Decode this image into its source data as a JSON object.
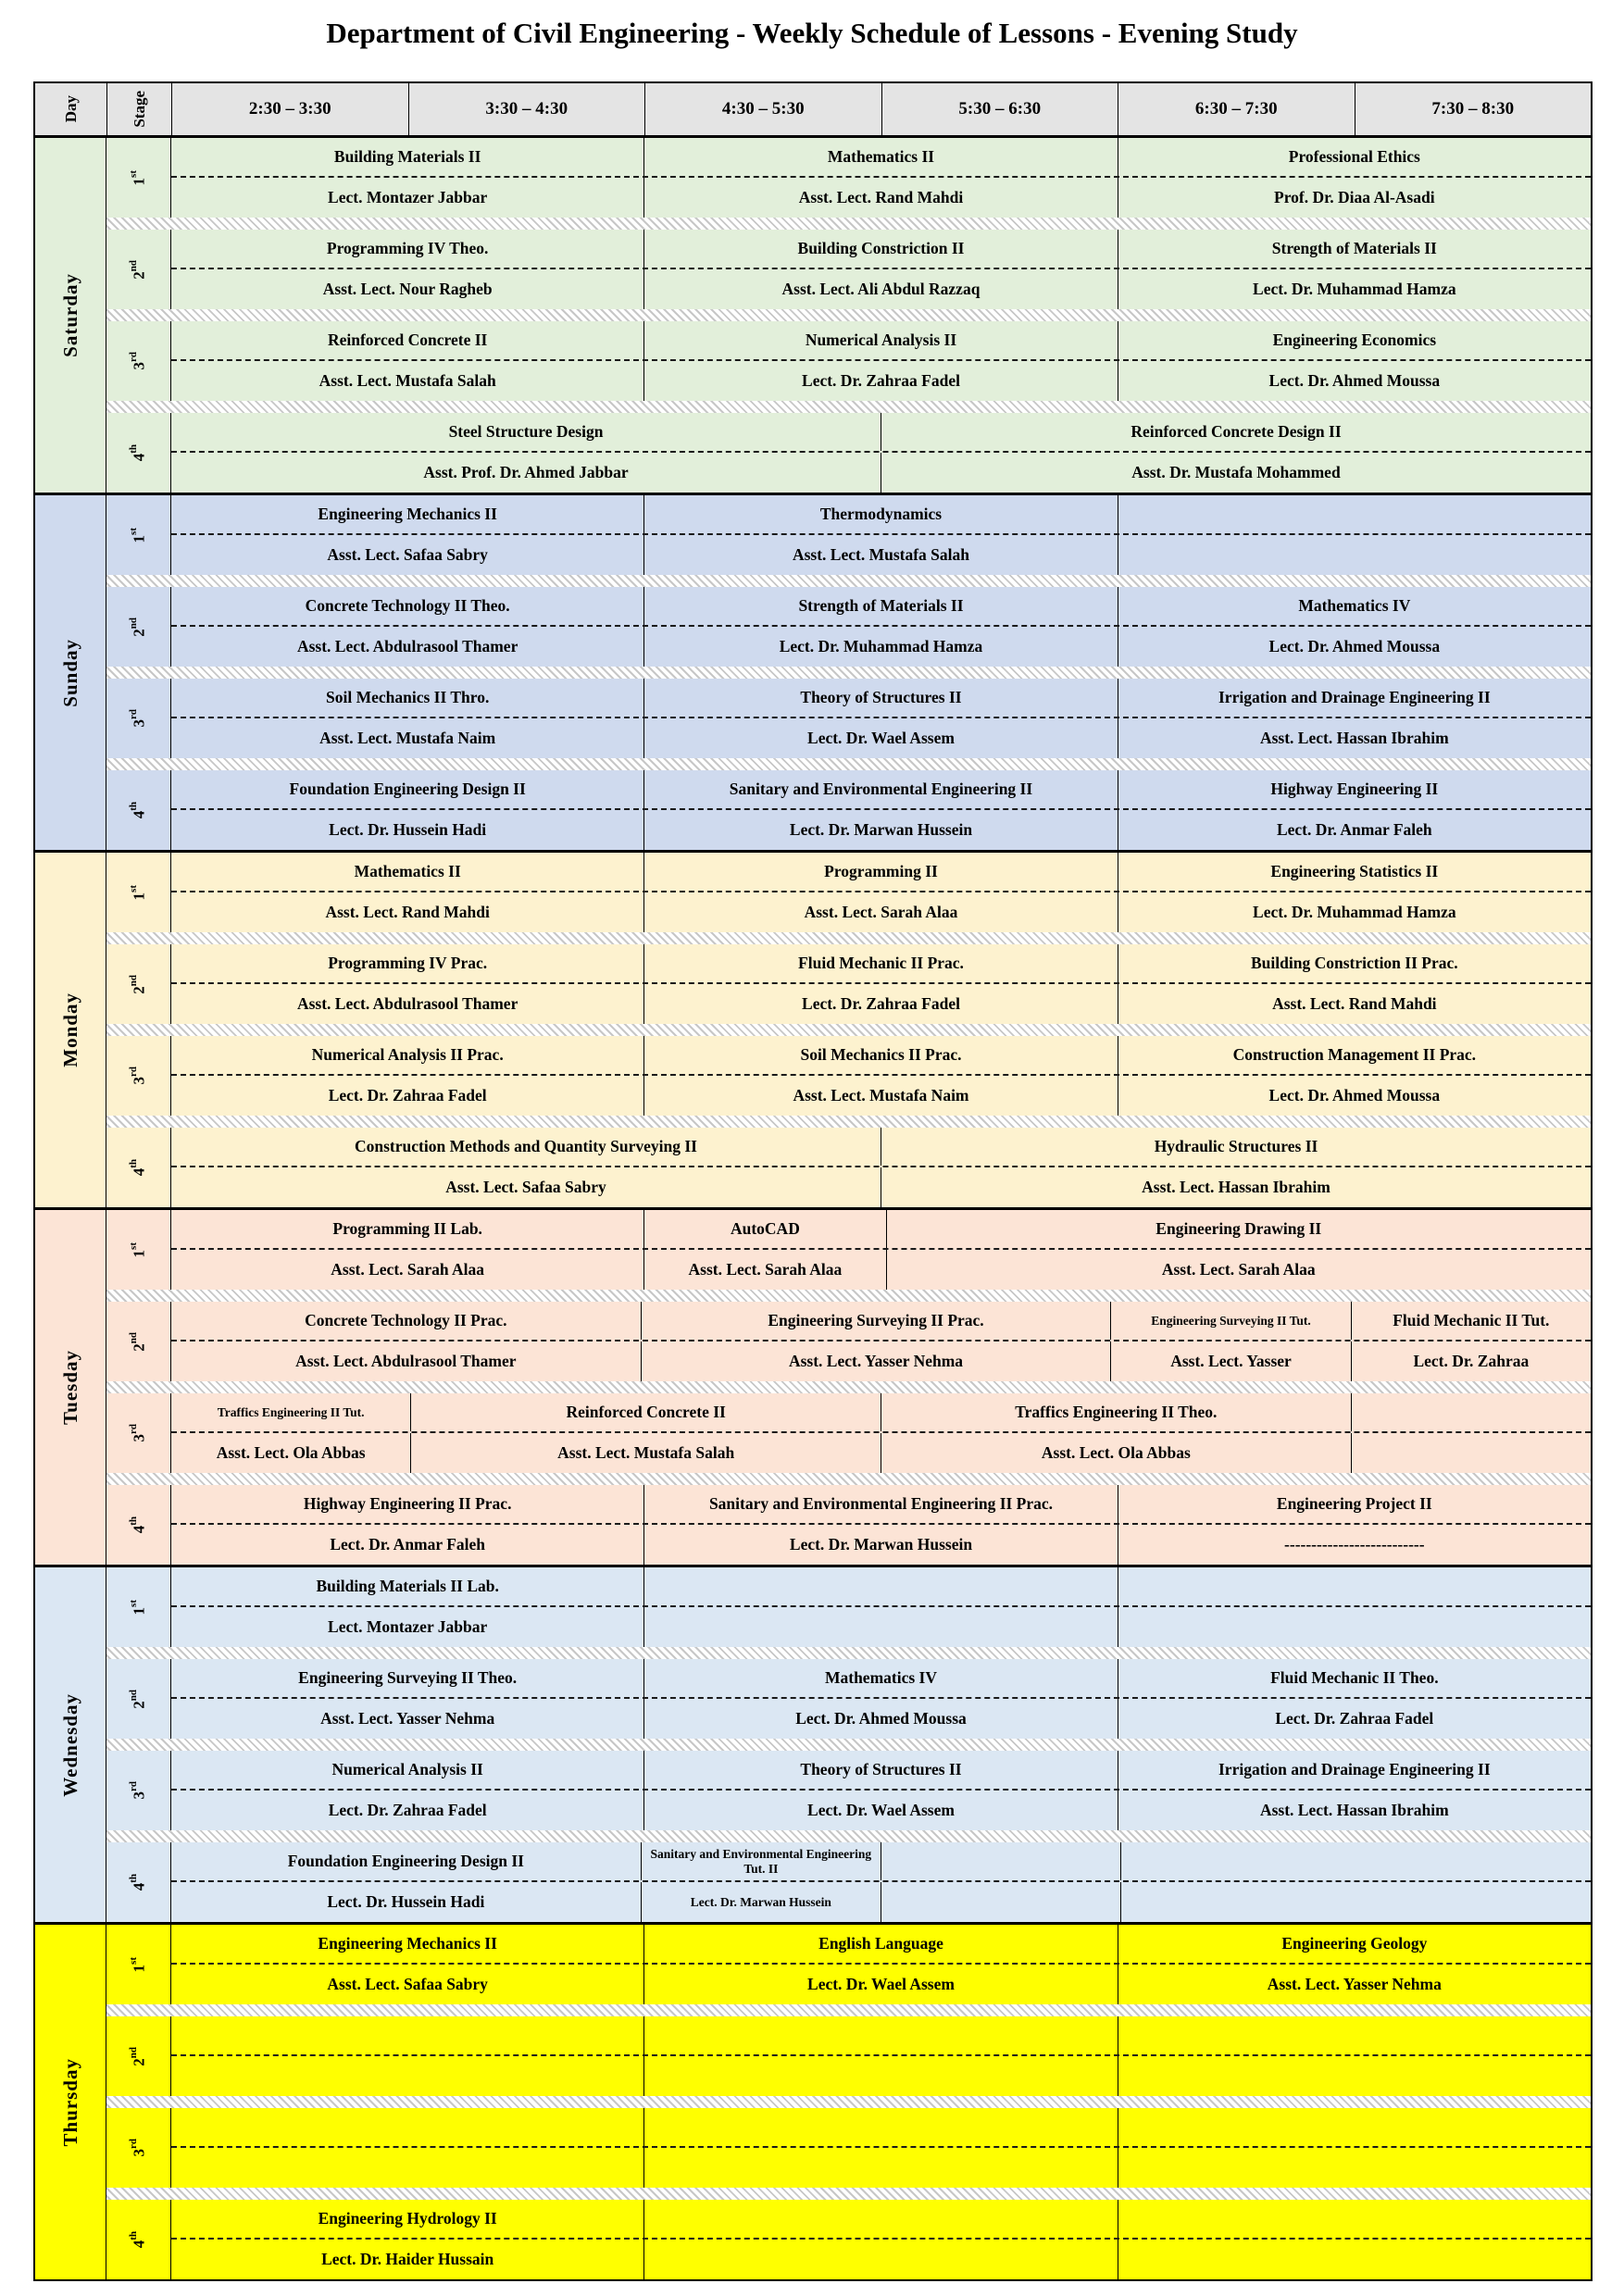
{
  "title": "Department of Civil Engineering - Weekly Schedule of Lessons - Evening Study",
  "header": {
    "day": "Day",
    "stage": "Stage",
    "times": [
      "2:30 – 3:30",
      "3:30 – 4:30",
      "4:30 – 5:30",
      "5:30 – 6:30",
      "6:30 – 7:30",
      "7:30 – 8:30"
    ]
  },
  "stages": [
    {
      "num": "1",
      "suffix": "st"
    },
    {
      "num": "2",
      "suffix": "nd"
    },
    {
      "num": "3",
      "suffix": "rd"
    },
    {
      "num": "4",
      "suffix": "th"
    }
  ],
  "colors": {
    "header_bg": "#e4e4e4",
    "saturday": "#e2efda",
    "sunday": "#cfdaee",
    "monday": "#fdf2cf",
    "tuesday": "#fce4d6",
    "wednesday": "#dbe7f3",
    "thursday": "#ffff00"
  },
  "days": [
    {
      "name": "Saturday",
      "color": "#e2efda",
      "stages": [
        {
          "cells": [
            {
              "span": 2,
              "subject": "Building Materials II",
              "lecturer": "Lect. Montazer Jabbar"
            },
            {
              "span": 2,
              "subject": "Mathematics II",
              "lecturer": "Asst. Lect. Rand Mahdi"
            },
            {
              "span": 2,
              "subject": "Professional Ethics",
              "lecturer": "Prof. Dr. Diaa Al-Asadi"
            }
          ]
        },
        {
          "cells": [
            {
              "span": 2,
              "subject": "Programming IV Theo.",
              "lecturer": "Asst. Lect. Nour Ragheb"
            },
            {
              "span": 2,
              "subject": "Building Constriction II",
              "lecturer": "Asst. Lect. Ali Abdul Razzaq"
            },
            {
              "span": 2,
              "subject": "Strength of Materials II",
              "lecturer": "Lect. Dr. Muhammad Hamza"
            }
          ]
        },
        {
          "cells": [
            {
              "span": 2,
              "subject": "Reinforced Concrete II",
              "lecturer": "Asst. Lect. Mustafa Salah"
            },
            {
              "span": 2,
              "subject": "Numerical Analysis II",
              "lecturer": "Lect. Dr. Zahraa Fadel"
            },
            {
              "span": 2,
              "subject": "Engineering Economics",
              "lecturer": "Lect. Dr. Ahmed Moussa"
            }
          ]
        },
        {
          "cells": [
            {
              "span": 3,
              "subject": "Steel Structure Design",
              "lecturer": "Asst. Prof. Dr. Ahmed Jabbar"
            },
            {
              "span": 3,
              "subject": "Reinforced Concrete Design II",
              "lecturer": "Asst. Dr. Mustafa Mohammed"
            }
          ]
        }
      ]
    },
    {
      "name": "Sunday",
      "color": "#cfdaee",
      "stages": [
        {
          "cells": [
            {
              "span": 2,
              "subject": "Engineering Mechanics II",
              "lecturer": "Asst. Lect. Safaa Sabry"
            },
            {
              "span": 2,
              "subject": "Thermodynamics",
              "lecturer": "Asst. Lect. Mustafa Salah"
            },
            {
              "span": 2,
              "subject": "",
              "lecturer": ""
            }
          ]
        },
        {
          "cells": [
            {
              "span": 2,
              "subject": "Concrete Technology II Theo.",
              "lecturer": "Asst. Lect. Abdulrasool Thamer"
            },
            {
              "span": 2,
              "subject": "Strength of Materials II",
              "lecturer": "Lect. Dr. Muhammad Hamza"
            },
            {
              "span": 2,
              "subject": "Mathematics IV",
              "lecturer": "Lect. Dr. Ahmed Moussa"
            }
          ]
        },
        {
          "cells": [
            {
              "span": 2,
              "subject": "Soil Mechanics II Thro.",
              "lecturer": "Asst. Lect. Mustafa Naim"
            },
            {
              "span": 2,
              "subject": "Theory of Structures II",
              "lecturer": "Lect. Dr. Wael Assem"
            },
            {
              "span": 2,
              "subject": "Irrigation and Drainage Engineering II",
              "lecturer": "Asst. Lect. Hassan Ibrahim"
            }
          ]
        },
        {
          "cells": [
            {
              "span": 2,
              "subject": "Foundation Engineering Design II",
              "lecturer": "Lect. Dr. Hussein Hadi"
            },
            {
              "span": 2,
              "subject": "Sanitary and Environmental Engineering II",
              "lecturer": "Lect. Dr. Marwan Hussein"
            },
            {
              "span": 2,
              "subject": "Highway Engineering II",
              "lecturer": "Lect. Dr. Anmar Faleh"
            }
          ]
        }
      ]
    },
    {
      "name": "Monday",
      "color": "#fdf2cf",
      "stages": [
        {
          "cells": [
            {
              "span": 2,
              "subject": "Mathematics II",
              "lecturer": "Asst. Lect. Rand Mahdi"
            },
            {
              "span": 2,
              "subject": "Programming II",
              "lecturer": "Asst. Lect. Sarah Alaa"
            },
            {
              "span": 2,
              "subject": "Engineering Statistics II",
              "lecturer": "Lect. Dr. Muhammad Hamza"
            }
          ]
        },
        {
          "cells": [
            {
              "span": 2,
              "subject": "Programming IV Prac.",
              "lecturer": "Asst. Lect. Abdulrasool Thamer"
            },
            {
              "span": 2,
              "subject": "Fluid Mechanic II Prac.",
              "lecturer": "Lect. Dr. Zahraa Fadel"
            },
            {
              "span": 2,
              "subject": "Building Constriction II Prac.",
              "lecturer": "Asst. Lect. Rand Mahdi"
            }
          ]
        },
        {
          "cells": [
            {
              "span": 2,
              "subject": "Numerical Analysis II Prac.",
              "lecturer": "Lect. Dr. Zahraa Fadel"
            },
            {
              "span": 2,
              "subject": "Soil Mechanics II Prac.",
              "lecturer": "Asst. Lect. Mustafa Naim"
            },
            {
              "span": 2,
              "subject": "Construction Management II Prac.",
              "lecturer": "Lect. Dr. Ahmed Moussa"
            }
          ]
        },
        {
          "cells": [
            {
              "span": 3,
              "subject": "Construction Methods and Quantity Surveying II",
              "lecturer": "Asst. Lect. Safaa Sabry"
            },
            {
              "span": 3,
              "subject": "Hydraulic Structures II",
              "lecturer": "Asst. Lect. Hassan Ibrahim"
            }
          ]
        }
      ]
    },
    {
      "name": "Tuesday",
      "color": "#fce4d6",
      "stages": [
        {
          "cells": [
            {
              "span": 2,
              "subject": "Programming II Lab.",
              "lecturer": "Asst. Lect. Sarah Alaa"
            },
            {
              "span": 1,
              "subject": "AutoCAD",
              "lecturer": "Asst. Lect. Sarah Alaa"
            },
            {
              "span": 3,
              "subject": "Engineering Drawing II",
              "lecturer": "Asst. Lect. Sarah Alaa"
            }
          ]
        },
        {
          "cells": [
            {
              "span": 2,
              "subject": "Concrete Technology II Prac.",
              "lecturer": "Asst. Lect. Abdulrasool Thamer"
            },
            {
              "span": 2,
              "subject": "Engineering Surveying II Prac.",
              "lecturer": "Asst. Lect. Yasser Nehma"
            },
            {
              "span": 1,
              "subject": "Engineering Surveying II Tut.",
              "lecturer": "Asst. Lect. Yasser",
              "subject_small": true
            },
            {
              "span": 1,
              "subject": "Fluid Mechanic II Tut.",
              "lecturer": "Lect. Dr. Zahraa"
            }
          ]
        },
        {
          "cells": [
            {
              "span": 1,
              "subject": "Traffics Engineering II Tut.",
              "lecturer": "Asst. Lect. Ola Abbas",
              "subject_small": true
            },
            {
              "span": 2,
              "subject": "Reinforced Concrete II",
              "lecturer": "Asst. Lect. Mustafa Salah"
            },
            {
              "span": 2,
              "subject": "Traffics Engineering II Theo.",
              "lecturer": "Asst. Lect. Ola Abbas"
            },
            {
              "span": 1,
              "subject": "",
              "lecturer": ""
            }
          ]
        },
        {
          "cells": [
            {
              "span": 2,
              "subject": "Highway Engineering II Prac.",
              "lecturer": "Lect. Dr. Anmar Faleh"
            },
            {
              "span": 2,
              "subject": "Sanitary and Environmental Engineering II Prac.",
              "lecturer": "Lect. Dr. Marwan Hussein"
            },
            {
              "span": 2,
              "subject": "Engineering Project II",
              "lecturer": "--------------------------"
            }
          ]
        }
      ]
    },
    {
      "name": "Wednesday",
      "color": "#dbe7f3",
      "stages": [
        {
          "cells": [
            {
              "span": 2,
              "subject": "Building Materials II Lab.",
              "lecturer": "Lect. Montazer Jabbar"
            },
            {
              "span": 2,
              "subject": "",
              "lecturer": ""
            },
            {
              "span": 2,
              "subject": "",
              "lecturer": ""
            }
          ]
        },
        {
          "cells": [
            {
              "span": 2,
              "subject": "Engineering Surveying II Theo.",
              "lecturer": "Asst. Lect. Yasser Nehma"
            },
            {
              "span": 2,
              "subject": "Mathematics IV",
              "lecturer": "Lect. Dr. Ahmed Moussa"
            },
            {
              "span": 2,
              "subject": "Fluid Mechanic II Theo.",
              "lecturer": "Lect. Dr. Zahraa Fadel"
            }
          ]
        },
        {
          "cells": [
            {
              "span": 2,
              "subject": "Numerical Analysis II",
              "lecturer": "Lect. Dr. Zahraa Fadel"
            },
            {
              "span": 2,
              "subject": "Theory of Structures II",
              "lecturer": "Lect. Dr. Wael Assem"
            },
            {
              "span": 2,
              "subject": "Irrigation and Drainage Engineering II",
              "lecturer": "Asst. Lect. Hassan Ibrahim"
            }
          ]
        },
        {
          "cells": [
            {
              "span": 2,
              "subject": "Foundation Engineering Design II",
              "lecturer": "Lect. Dr. Hussein Hadi"
            },
            {
              "span": 1,
              "subject": "Sanitary and Environmental Engineering Tut. II",
              "lecturer": "Lect. Dr. Marwan Hussein",
              "subject_small": true,
              "lecturer_small": true
            },
            {
              "span": 1,
              "subject": "",
              "lecturer": ""
            },
            {
              "span": 2,
              "subject": "",
              "lecturer": ""
            }
          ]
        }
      ]
    },
    {
      "name": "Thursday",
      "color": "#ffff00",
      "stages": [
        {
          "cells": [
            {
              "span": 2,
              "subject": "Engineering Mechanics II",
              "lecturer": "Asst. Lect. Safaa Sabry"
            },
            {
              "span": 2,
              "subject": "English Language",
              "lecturer": "Lect. Dr. Wael Assem"
            },
            {
              "span": 2,
              "subject": "Engineering Geology",
              "lecturer": "Asst. Lect. Yasser Nehma"
            }
          ]
        },
        {
          "cells": [
            {
              "span": 2,
              "subject": "",
              "lecturer": ""
            },
            {
              "span": 2,
              "subject": "",
              "lecturer": ""
            },
            {
              "span": 2,
              "subject": "",
              "lecturer": ""
            }
          ]
        },
        {
          "cells": [
            {
              "span": 2,
              "subject": "",
              "lecturer": ""
            },
            {
              "span": 2,
              "subject": "",
              "lecturer": ""
            },
            {
              "span": 2,
              "subject": "",
              "lecturer": ""
            }
          ]
        },
        {
          "cells": [
            {
              "span": 2,
              "subject": "Engineering Hydrology II",
              "lecturer": "Lect. Dr. Haider Hussain"
            },
            {
              "span": 2,
              "subject": "",
              "lecturer": ""
            },
            {
              "span": 2,
              "subject": "",
              "lecturer": ""
            }
          ]
        }
      ]
    }
  ]
}
